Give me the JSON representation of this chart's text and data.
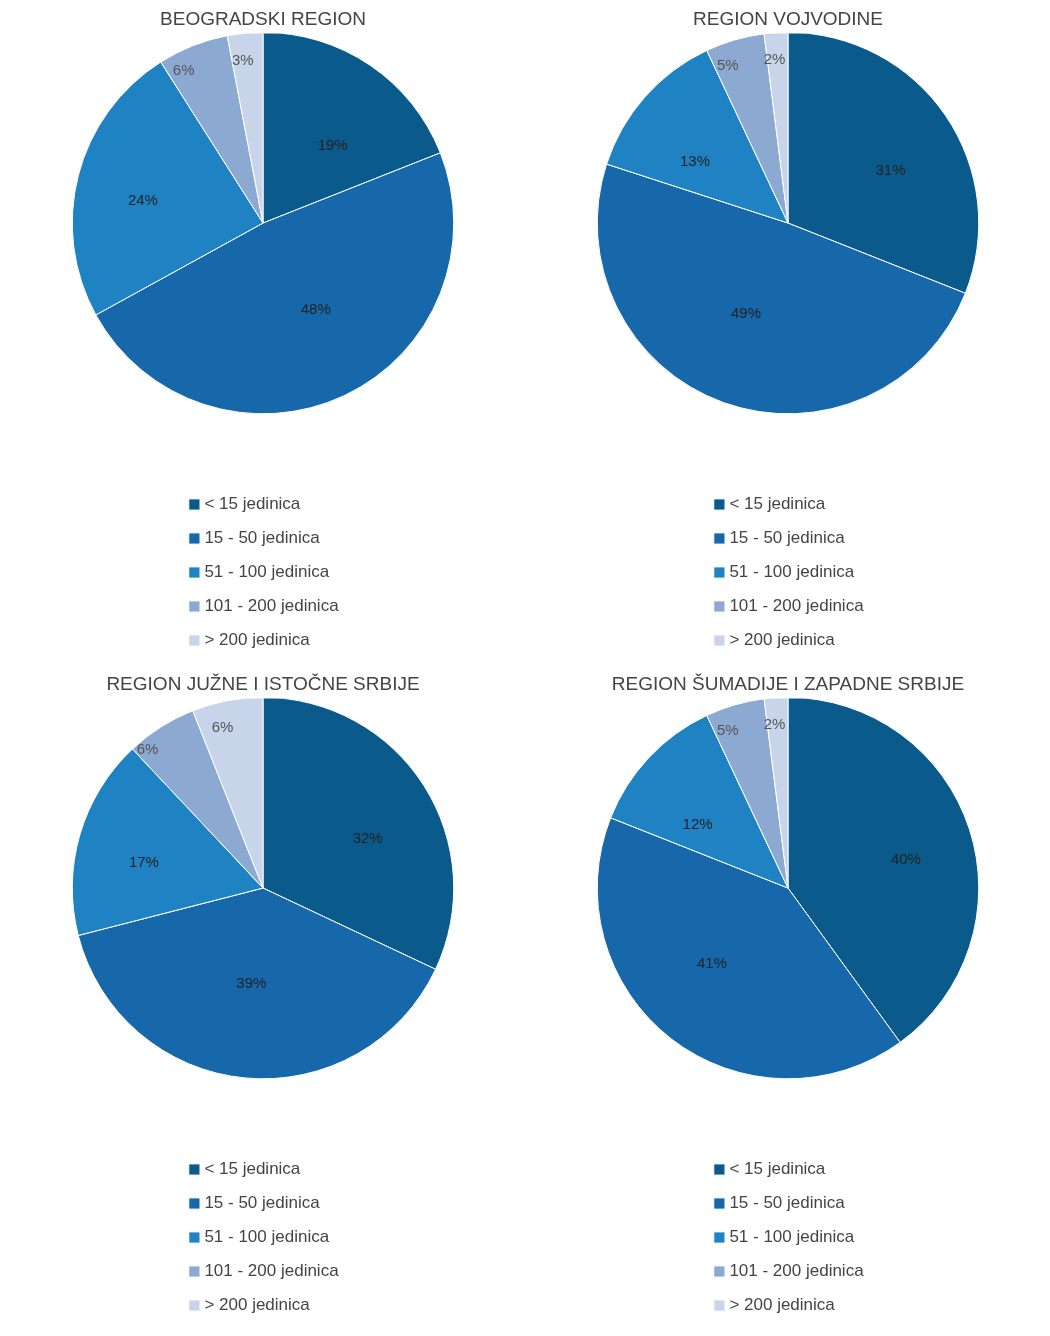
{
  "chart_data": [
    {
      "type": "pie",
      "title": "BEOGRADSKI REGION",
      "categories": [
        "< 15 jedinica",
        "15 - 50 jedinica",
        "51 - 100 jedinica",
        "101 - 200 jedinica",
        "> 200 jedinica"
      ],
      "values": [
        19,
        48,
        24,
        6,
        3
      ],
      "value_labels": [
        "19%",
        "48%",
        "24%",
        "6%",
        "3%"
      ],
      "colors": [
        "#0b5a8c",
        "#1668ab",
        "#1f82c2",
        "#8ca9d2",
        "#c7d4ea"
      ],
      "legend": "bottom"
    },
    {
      "type": "pie",
      "title": "REGION VOJVODINE",
      "categories": [
        "< 15 jedinica",
        "15 - 50 jedinica",
        "51 - 100 jedinica",
        "101 - 200 jedinica",
        "> 200 jedinica"
      ],
      "values": [
        31,
        49,
        13,
        5,
        2
      ],
      "value_labels": [
        "31%",
        "49%",
        "13%",
        "5%",
        "2%"
      ],
      "colors": [
        "#0b5a8c",
        "#1668ab",
        "#1f82c2",
        "#8ca9d2",
        "#c7d4ea"
      ],
      "legend": "bottom"
    },
    {
      "type": "pie",
      "title": "REGION JUŽNE I ISTOČNE SRBIJE",
      "categories": [
        "< 15 jedinica",
        "15 - 50 jedinica",
        "51 - 100 jedinica",
        "101 - 200 jedinica",
        "> 200 jedinica"
      ],
      "values": [
        32,
        39,
        17,
        6,
        6
      ],
      "value_labels": [
        "32%",
        "39%",
        "17%",
        "6%",
        "6%"
      ],
      "colors": [
        "#0b5a8c",
        "#1668ab",
        "#1f82c2",
        "#8ca9d2",
        "#c7d4ea"
      ],
      "legend": "bottom"
    },
    {
      "type": "pie",
      "title": "REGION ŠUMADIJE I ZAPADNE SRBIJE",
      "categories": [
        "< 15 jedinica",
        "15 - 50 jedinica",
        "51 - 100 jedinica",
        "101 - 200 jedinica",
        "> 200 jedinica"
      ],
      "values": [
        40,
        41,
        12,
        5,
        2
      ],
      "value_labels": [
        "40%",
        "41%",
        "12%",
        "5%",
        "2%"
      ],
      "colors": [
        "#0b5a8c",
        "#1668ab",
        "#1f82c2",
        "#8ca9d2",
        "#c7d4ea"
      ],
      "legend": "bottom"
    }
  ]
}
